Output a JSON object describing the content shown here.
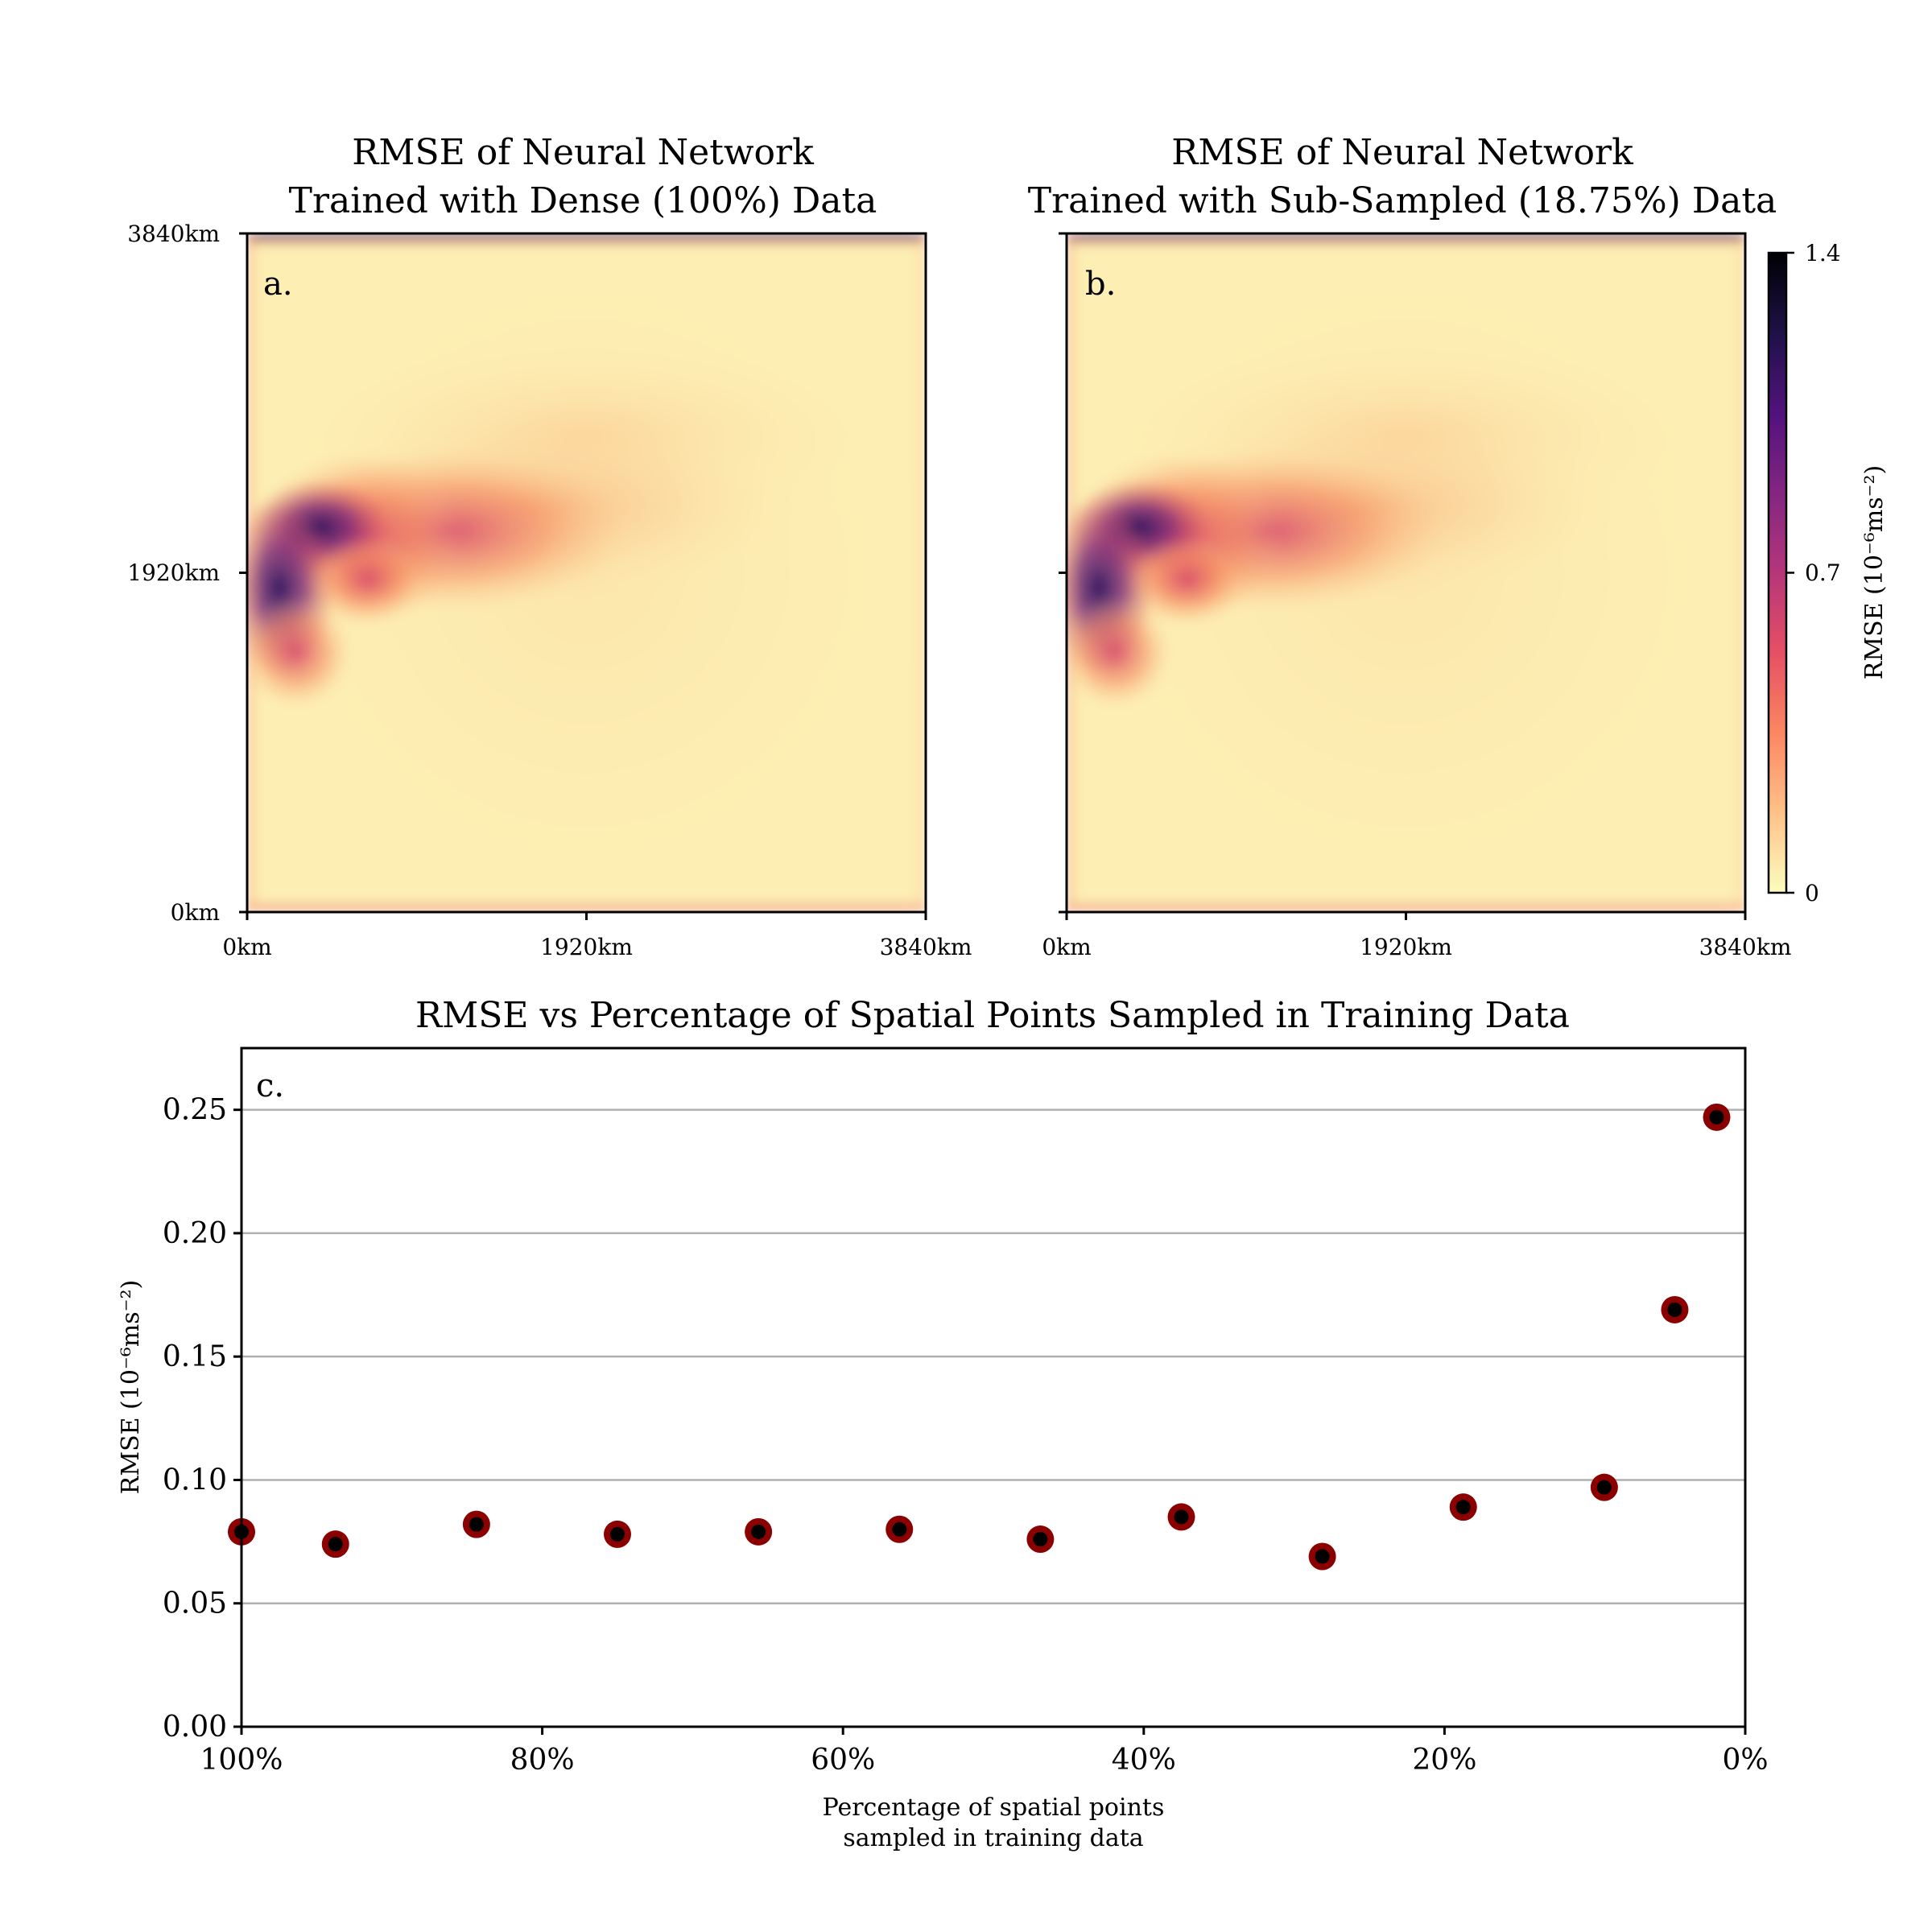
{
  "chart_data": [
    {
      "id": "a",
      "type": "heatmap",
      "panel_label": "a.",
      "title_lines": [
        "RMSE of Neural Network",
        "Trained with Dense (100%) Data"
      ],
      "x_ticks": [
        "0km",
        "1920km",
        "3840km"
      ],
      "y_ticks": [
        "0km",
        "1920km",
        "3840km"
      ],
      "colormap": "magma_r"
    },
    {
      "id": "b",
      "type": "heatmap",
      "panel_label": "b.",
      "title_lines": [
        "RMSE of Neural Network",
        "Trained with Sub-Sampled (18.75%) Data"
      ],
      "x_ticks": [
        "0km",
        "1920km",
        "3840km"
      ],
      "y_ticks": [
        "0km",
        "1920km",
        "3840km"
      ],
      "colormap": "magma_r",
      "colorbar": {
        "label": "RMSE (10⁻⁶ms⁻²)",
        "ticks": [
          "0",
          "0.7",
          "1.4"
        ],
        "range": [
          0,
          1.4
        ],
        "colors": [
          "#fcfdbf",
          "#fec287",
          "#fb8761",
          "#e55064",
          "#b5367a",
          "#822681",
          "#51127c",
          "#1e1147",
          "#000004"
        ]
      }
    },
    {
      "id": "c",
      "type": "scatter",
      "panel_label": "c.",
      "title": "RMSE vs Percentage of Spatial Points Sampled in Training Data",
      "xlabel_lines": [
        "Percentage of spatial points",
        "sampled in training data"
      ],
      "ylabel": "RMSE (10⁻⁶ms⁻²)",
      "x_reversed": true,
      "xlim": [
        100,
        0
      ],
      "ylim": [
        0,
        0.275
      ],
      "x_ticks": [
        100,
        80,
        60,
        40,
        20,
        0
      ],
      "x_tick_labels": [
        "100%",
        "80%",
        "60%",
        "40%",
        "20%",
        "0%"
      ],
      "y_ticks": [
        0.0,
        0.05,
        0.1,
        0.15,
        0.2,
        0.25
      ],
      "y_tick_labels": [
        "0.00",
        "0.05",
        "0.10",
        "0.15",
        "0.20",
        "0.25"
      ],
      "grid": "horizontal",
      "marker_edge_color": "#8b0000",
      "marker_face_color": "#000000",
      "points": [
        {
          "x": 100.0,
          "y": 0.079
        },
        {
          "x": 93.75,
          "y": 0.074
        },
        {
          "x": 84.375,
          "y": 0.082
        },
        {
          "x": 75.0,
          "y": 0.078
        },
        {
          "x": 65.625,
          "y": 0.079
        },
        {
          "x": 56.25,
          "y": 0.08
        },
        {
          "x": 46.875,
          "y": 0.076
        },
        {
          "x": 37.5,
          "y": 0.085
        },
        {
          "x": 28.125,
          "y": 0.069
        },
        {
          "x": 18.75,
          "y": 0.089
        },
        {
          "x": 9.375,
          "y": 0.097
        },
        {
          "x": 4.6875,
          "y": 0.169
        },
        {
          "x": 1.9,
          "y": 0.247
        }
      ]
    }
  ]
}
